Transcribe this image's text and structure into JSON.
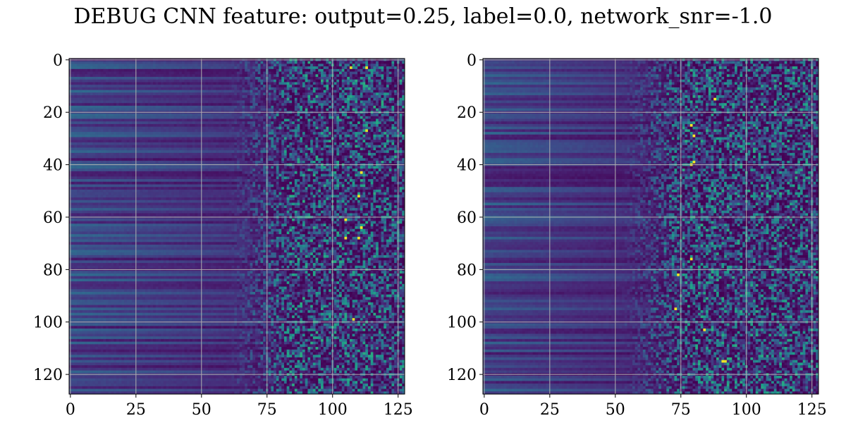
{
  "figure": {
    "title": "DEBUG CNN feature: output=0.25, label=0.0, network_snr=-1.0"
  },
  "chart_data": [
    {
      "type": "heatmap",
      "colormap": "viridis",
      "rows": 128,
      "cols": 128,
      "xlim": [
        -0.5,
        127.5
      ],
      "ylim": [
        127.5,
        -0.5
      ],
      "grid": true,
      "xticks": [
        0,
        25,
        50,
        75,
        100,
        125
      ],
      "yticks": [
        0,
        20,
        40,
        60,
        80,
        100,
        120
      ],
      "xtick_labels": [
        "0",
        "25",
        "50",
        "75",
        "100",
        "125"
      ],
      "ytick_labels": [
        "0",
        "20",
        "40",
        "60",
        "80",
        "100",
        "120"
      ],
      "pattern": {
        "onset_col": 72,
        "bright_spots": [
          [
            3,
            107
          ],
          [
            3,
            113
          ],
          [
            27,
            113
          ],
          [
            43,
            111
          ],
          [
            52,
            110
          ],
          [
            61,
            105
          ],
          [
            64,
            111
          ],
          [
            68,
            110
          ],
          [
            68,
            105
          ],
          [
            99,
            108
          ]
        ]
      }
    },
    {
      "type": "heatmap",
      "colormap": "viridis",
      "rows": 128,
      "cols": 128,
      "xlim": [
        -0.5,
        127.5
      ],
      "ylim": [
        127.5,
        -0.5
      ],
      "grid": true,
      "xticks": [
        0,
        25,
        50,
        75,
        100,
        125
      ],
      "yticks": [
        0,
        20,
        40,
        60,
        80,
        100,
        120
      ],
      "xtick_labels": [
        "0",
        "25",
        "50",
        "75",
        "100",
        "125"
      ],
      "ytick_labels": [
        "0",
        "20",
        "40",
        "60",
        "80",
        "100",
        "120"
      ],
      "pattern": {
        "onset_col": 64,
        "bright_spots": [
          [
            15,
            88
          ],
          [
            25,
            79
          ],
          [
            29,
            80
          ],
          [
            39,
            80
          ],
          [
            40,
            79
          ],
          [
            76,
            79
          ],
          [
            82,
            74
          ],
          [
            95,
            73
          ],
          [
            103,
            84
          ],
          [
            115,
            92
          ],
          [
            115,
            91
          ]
        ]
      }
    }
  ]
}
